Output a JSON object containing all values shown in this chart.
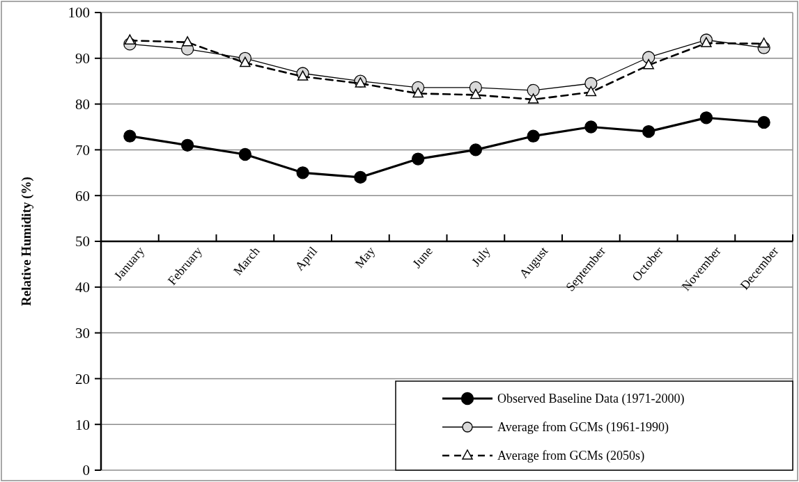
{
  "chart_data": {
    "type": "line",
    "ylabel": "Relative Humidity (%)",
    "categories": [
      "January",
      "February",
      "March",
      "April",
      "May",
      "June",
      "July",
      "August",
      "September",
      "October",
      "November",
      "December"
    ],
    "series": [
      {
        "name": "Observed Baseline Data (1971-2000)",
        "color": "#000000",
        "marker": "circle",
        "line_style": "solid",
        "values": [
          73,
          71,
          69,
          65,
          64,
          68,
          70,
          73,
          75,
          74,
          77,
          76
        ]
      },
      {
        "name": "Average from GCMs (1961-1990)",
        "color": "#d9d9d9",
        "marker": "circle",
        "line_style": "solid",
        "values": [
          93.1,
          92,
          90,
          86.7,
          85,
          83.6,
          83.6,
          83,
          84.5,
          90.2,
          94,
          92.3
        ]
      },
      {
        "name": "Average from GCMs (2050s)",
        "color": "#ffffff",
        "marker": "triangle",
        "line_style": "dashed",
        "values": [
          93.9,
          93.5,
          89,
          86,
          84.5,
          82.3,
          82,
          81,
          82.6,
          88.5,
          93.3,
          93.2
        ]
      }
    ],
    "ylim": [
      0,
      100
    ],
    "yticks": [
      0,
      10,
      20,
      30,
      40,
      50,
      60,
      70,
      80,
      90,
      100
    ],
    "grid": "y",
    "legend": "bottom right"
  }
}
